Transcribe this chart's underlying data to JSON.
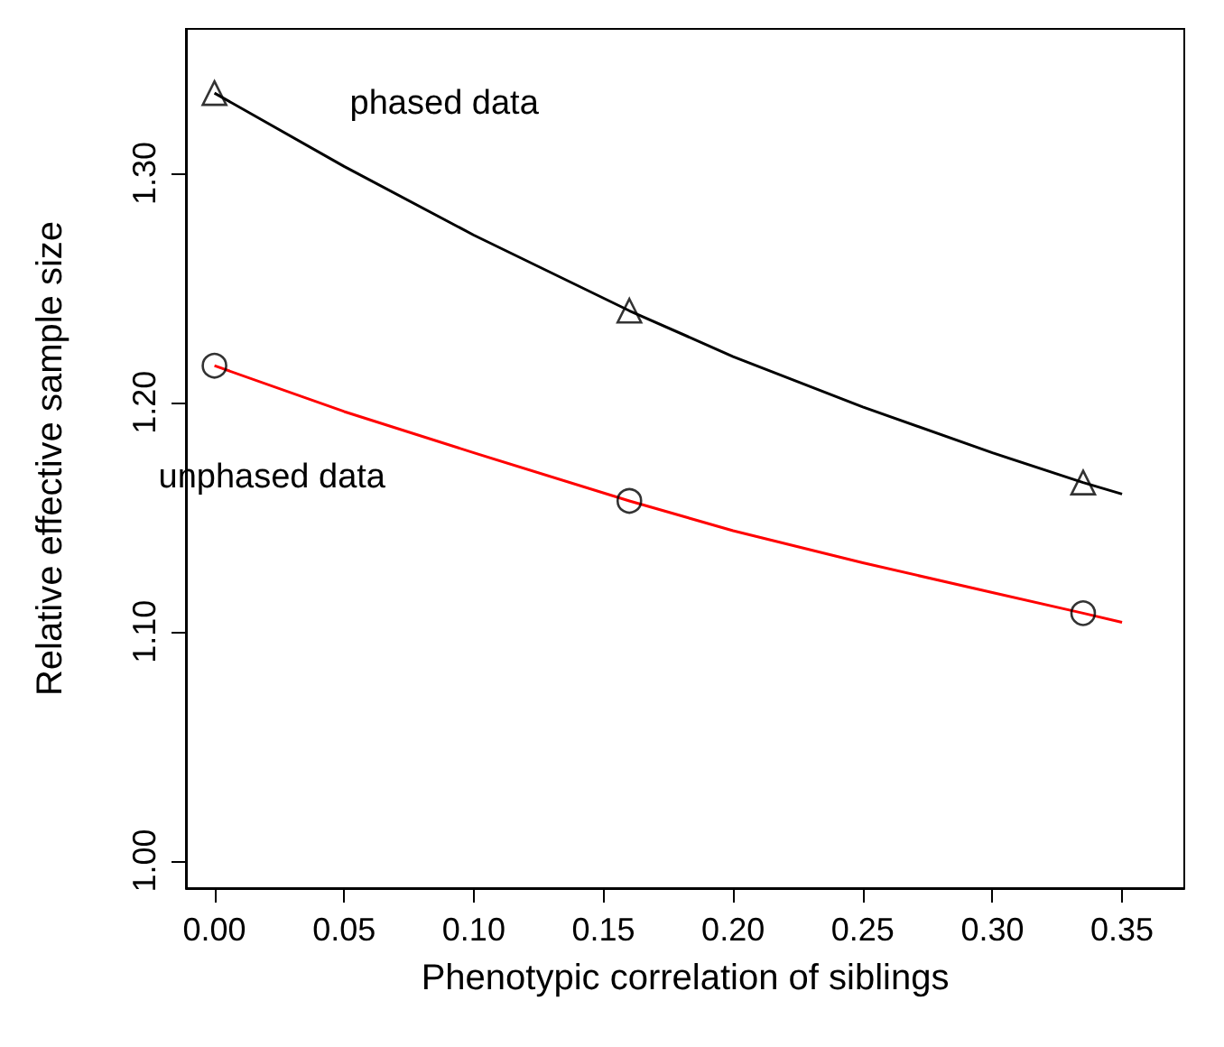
{
  "chart_data": {
    "type": "line",
    "xlabel": "Phenotypic correlation of siblings",
    "ylabel": "Relative effective sample size",
    "xlim": [
      -0.011,
      0.374
    ],
    "xticks": [
      {
        "value": 0,
        "label": "0.00"
      },
      0.05,
      {
        "value": 0.1,
        "label": "0.10"
      },
      0.15,
      {
        "value": 0.2,
        "label": "0.20"
      },
      0.25,
      {
        "value": 0.3,
        "label": "0.30"
      },
      0.35
    ],
    "ylim": [
      0.988,
      1.363
    ],
    "yticks": [
      {
        "value": 1,
        "label": "1.00"
      },
      {
        "value": 1.1,
        "label": "1.10"
      },
      {
        "value": 1.2,
        "label": "1.20"
      },
      {
        "value": 1.3,
        "label": "1.30"
      }
    ],
    "grid": false,
    "legend": false,
    "series": [
      {
        "name": "phased data",
        "color": "#000000",
        "marker": "none",
        "x": [
          0,
          0.05,
          0.1,
          0.16,
          0.2,
          0.25,
          0.3,
          0.335,
          0.35
        ],
        "values": [
          1.335,
          1.303,
          1.273,
          1.24,
          1.22,
          1.198,
          1.178,
          1.165,
          1.16
        ]
      },
      {
        "name": "unphased data",
        "color": "#ff0000",
        "marker": "none",
        "x": [
          0,
          0.05,
          0.1,
          0.16,
          0.2,
          0.25,
          0.3,
          0.335,
          0.35
        ],
        "values": [
          1.216,
          1.196,
          1.178,
          1.157,
          1.144,
          1.13,
          1.117,
          1.108,
          1.104
        ]
      },
      {
        "type": "scatter",
        "color": "#000000",
        "marker": "triangle",
        "x": [
          0,
          0.16,
          0.335
        ],
        "values": [
          1.335,
          1.24,
          1.165
        ]
      },
      {
        "type": "scatter",
        "color": "#000000",
        "marker": "circle",
        "x": [
          0,
          0.16,
          0.335
        ],
        "values": [
          1.216,
          1.157,
          1.108
        ]
      }
    ]
  }
}
